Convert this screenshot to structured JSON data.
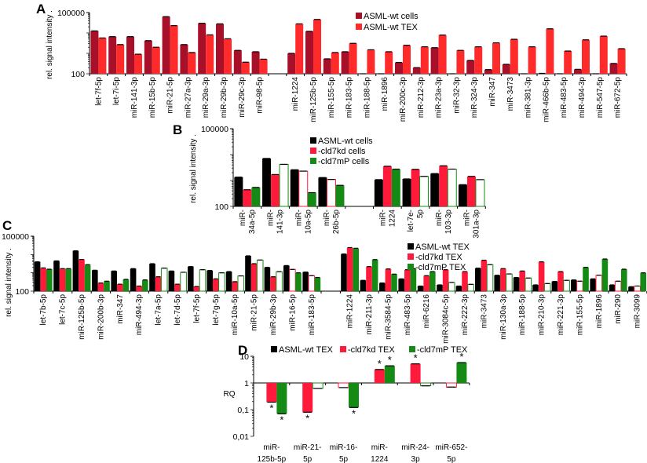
{
  "chart_data": [
    {
      "panel": "A",
      "type": "bar",
      "scale": "log",
      "ylabel": "rel. signal intensity .",
      "ylim": [
        100,
        100000
      ],
      "tick_labels": [
        "100",
        "100000"
      ],
      "legend_placement": "top-center",
      "categories": [
        [
          "let-7f-5p"
        ],
        [
          "let-7i-5p"
        ],
        [
          "miR-141-3p"
        ],
        [
          "miR-15b-5p"
        ],
        [
          "miR-21-5p"
        ],
        [
          "miR-27a-3p"
        ],
        [
          "miR-29a-3p"
        ],
        [
          "miR-29b-3p"
        ],
        [
          "miR-29c-3p"
        ],
        [
          "miR-98-5p"
        ],
        [
          "miR-1224"
        ],
        [
          "miR-125b-5p"
        ],
        [
          "miR-155-5p"
        ],
        [
          "miR-183-5p"
        ],
        [
          "miR-188-5p"
        ],
        [
          "miR-1896"
        ],
        [
          "miR-200c-3p"
        ],
        [
          "miR-212-3p"
        ],
        [
          "miR-23a-3p"
        ],
        [
          "miR-32-3p"
        ],
        [
          "miR-324-3p"
        ],
        [
          "miR-347"
        ],
        [
          "miR-3473"
        ],
        [
          "miR-381-3p"
        ],
        [
          "miR-466b-5p"
        ],
        [
          "miR-483-5p"
        ],
        [
          "miR-494-3p"
        ],
        [
          "miR-547-5p"
        ],
        [
          "miR-672-5p"
        ]
      ],
      "group_break_after": 10,
      "series": [
        {
          "name": "ASML-wt cells",
          "color": "#a8102a",
          "values": [
            12600,
            6600,
            6600,
            4200,
            63000,
            2700,
            30000,
            28000,
            1400,
            1200,
            1000,
            12000,
            540,
            1200,
            100,
            100,
            360,
            200,
            1900,
            100,
            450,
            160,
            290,
            100,
            105,
            100,
            165,
            100,
            320
          ]
        },
        {
          "name": "ASML-wt TEX",
          "color": "#ff2b2b",
          "values": [
            5700,
            2700,
            910,
            2000,
            23000,
            1100,
            8100,
            5200,
            370,
            520,
            28000,
            46000,
            1100,
            3100,
            1500,
            1200,
            2500,
            2100,
            7900,
            1400,
            2100,
            3300,
            4900,
            2100,
            16000,
            1300,
            4600,
            7000,
            1700
          ]
        }
      ]
    },
    {
      "panel": "B",
      "type": "bar",
      "scale": "log",
      "ylabel": "rel. signal intensity .",
      "ylim": [
        100,
        100000
      ],
      "tick_labels": [
        "100",
        "100000"
      ],
      "legend_placement": "top-center",
      "categories": [
        [
          "miR-",
          "34a-5p"
        ],
        [
          "miR-",
          "141-3p"
        ],
        [
          "miR-",
          "10a-5p"
        ],
        [
          "miR-",
          "26b-5p"
        ],
        [
          "miR-",
          "1224"
        ],
        [
          "let-7e-",
          "5p"
        ],
        [
          "miR-",
          "103-3p"
        ],
        [
          "miR-",
          "301a-3p"
        ]
      ],
      "group_break_after": 4,
      "series": [
        {
          "name": "ASML-wt cells",
          "color": "#000000",
          "values": [
            1350,
            7100,
            2600,
            1300,
            1080,
            1150,
            1850,
            690
          ],
          "outline": [
            false,
            false,
            false,
            false,
            false,
            false,
            false,
            false
          ]
        },
        {
          "name": "-cld7kd cells",
          "color": "#ff1a3c",
          "values": [
            440,
            1700,
            2300,
            1100,
            3550,
            2700,
            3700,
            1440
          ],
          "outline": [
            false,
            false,
            true,
            true,
            false,
            false,
            false,
            false
          ]
        },
        {
          "name": "-cld7mP cells",
          "color": "#158a15",
          "values": [
            540,
            4200,
            340,
            650,
            2750,
            1440,
            2750,
            1080
          ],
          "outline": [
            false,
            true,
            false,
            false,
            false,
            true,
            true,
            true
          ]
        }
      ]
    },
    {
      "panel": "C",
      "type": "bar",
      "scale": "log",
      "ylabel": "rel. signal intensity .",
      "ylim": [
        100,
        100000
      ],
      "tick_labels": [
        "100",
        "100000"
      ],
      "legend_placement": "top-right",
      "categories": [
        [
          "let-7b-5p"
        ],
        [
          "let-7c-5p"
        ],
        [
          "miR-125b-5p"
        ],
        [
          "miR-200b-3p"
        ],
        [
          "miR-347"
        ],
        [
          "miR-494-3p"
        ],
        [
          "let-7a-5p"
        ],
        [
          "let-7d-5p"
        ],
        [
          "let-7f-5p"
        ],
        [
          "let-7g-5p"
        ],
        [
          "miR-10a-5p"
        ],
        [
          "miR-21-5p"
        ],
        [
          "miR-29b-3p"
        ],
        [
          "miR-16-5p"
        ],
        [
          "miR-183-5p"
        ],
        [
          "miR-1224"
        ],
        [
          "miR-211-3p"
        ],
        [
          "miR-3584-5p"
        ],
        [
          "miR-483-5p"
        ],
        [
          "miR-6216"
        ],
        [
          "miR-3084c-5p"
        ],
        [
          "miR-222-3p"
        ],
        [
          "miR-3473"
        ],
        [
          "miR-130a-3p"
        ],
        [
          "miR-188-5p"
        ],
        [
          "miR-210-3p"
        ],
        [
          "miR-221-3p"
        ],
        [
          "miR-155-5p"
        ],
        [
          "miR-1896"
        ],
        [
          "miR-290"
        ],
        [
          "miR-3099"
        ]
      ],
      "group_break_after": 15,
      "series": [
        {
          "name": "ASML-wt TEX",
          "color": "#000000",
          "values": [
            4000,
            4500,
            16000,
            1390,
            1260,
            1700,
            3160,
            1260,
            2200,
            1350,
            1170,
            8500,
            2000,
            2500,
            1100,
            10700,
            390,
            280,
            470,
            190,
            220,
            190,
            1800,
            740,
            560,
            220,
            340,
            410,
            470,
            220,
            175
          ],
          "outline": [
            false,
            false,
            false,
            false,
            false,
            false,
            false,
            false,
            false,
            false,
            false,
            false,
            false,
            false,
            false,
            false,
            false,
            false,
            false,
            false,
            false,
            false,
            false,
            false,
            false,
            false,
            false,
            false,
            false,
            false,
            false
          ]
        },
        {
          "name": "-cld7kd TEX",
          "color": "#ff1a3c",
          "values": [
            1860,
            1700,
            5400,
            280,
            240,
            190,
            610,
            240,
            180,
            470,
            330,
            3160,
            610,
            1540,
            700,
            24000,
            2200,
            1630,
            1480,
            700,
            1480,
            1170,
            4900,
            1700,
            1260,
            4000,
            1170,
            350,
            740,
            350,
            190
          ],
          "outline": [
            false,
            false,
            false,
            false,
            false,
            false,
            false,
            false,
            false,
            false,
            false,
            false,
            false,
            true,
            true,
            false,
            false,
            false,
            false,
            false,
            false,
            false,
            false,
            false,
            false,
            false,
            false,
            true,
            true,
            true,
            true
          ]
        },
        {
          "name": "-cld7mP TEX",
          "color": "#158a15",
          "values": [
            1580,
            1700,
            2800,
            350,
            440,
            410,
            1800,
            1070,
            1480,
            1000,
            680,
            5000,
            1150,
            1000,
            560,
            22000,
            5300,
            850,
            1700,
            1170,
            300,
            235,
            2800,
            870,
            520,
            260,
            390,
            2000,
            5700,
            1580,
            1000
          ],
          "outline": [
            false,
            false,
            false,
            false,
            false,
            false,
            true,
            true,
            true,
            true,
            true,
            true,
            true,
            false,
            false,
            false,
            false,
            false,
            false,
            false,
            true,
            true,
            true,
            true,
            true,
            true,
            true,
            false,
            false,
            false,
            false
          ]
        }
      ]
    },
    {
      "panel": "D",
      "type": "bar",
      "scale": "log",
      "ylabel": "RQ",
      "ylim": [
        0.01,
        10
      ],
      "baseline": 1,
      "tick_labels": [
        "0,01",
        "0,1",
        "1",
        "10"
      ],
      "legend_placement": "top",
      "significance_marker": "*",
      "categories": [
        [
          "miR-",
          "125b-5p"
        ],
        [
          "miR-21-",
          "5p"
        ],
        [
          "miR-16-",
          "5p"
        ],
        [
          "miR-",
          "1224"
        ],
        [
          "miR-24-",
          "3p"
        ],
        [
          "miR-652-",
          "5p"
        ]
      ],
      "group_break_after": null,
      "series": [
        {
          "name": "ASML-wt TEX",
          "color": "#000000",
          "values": [
            null,
            null,
            null,
            null,
            null,
            null
          ],
          "outline": [
            false,
            false,
            false,
            false,
            false,
            false
          ],
          "significant": [
            false,
            false,
            false,
            false,
            false,
            false
          ]
        },
        {
          "name": "-cld7kd TEX",
          "color": "#ff1a3c",
          "values": [
            0.19,
            0.08,
            0.67,
            3.2,
            5.2,
            0.7
          ],
          "outline": [
            false,
            false,
            true,
            false,
            false,
            true
          ],
          "significant": [
            true,
            true,
            false,
            true,
            true,
            false
          ]
        },
        {
          "name": "-cld7mP TEX",
          "color": "#158a15",
          "values": [
            0.07,
            0.62,
            0.12,
            4.4,
            0.78,
            5.8
          ],
          "outline": [
            false,
            true,
            false,
            false,
            true,
            false
          ],
          "significant": [
            true,
            false,
            true,
            true,
            false,
            true
          ]
        }
      ]
    }
  ]
}
